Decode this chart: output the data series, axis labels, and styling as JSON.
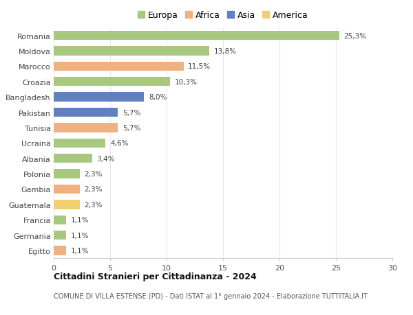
{
  "countries": [
    "Romania",
    "Moldova",
    "Marocco",
    "Croazia",
    "Bangladesh",
    "Pakistan",
    "Tunisia",
    "Ucraina",
    "Albania",
    "Polonia",
    "Gambia",
    "Guatemala",
    "Francia",
    "Germania",
    "Egitto"
  ],
  "values": [
    25.3,
    13.8,
    11.5,
    10.3,
    8.0,
    5.7,
    5.7,
    4.6,
    3.4,
    2.3,
    2.3,
    2.3,
    1.1,
    1.1,
    1.1
  ],
  "labels": [
    "25,3%",
    "13,8%",
    "11,5%",
    "10,3%",
    "8,0%",
    "5,7%",
    "5,7%",
    "4,6%",
    "3,4%",
    "2,3%",
    "2,3%",
    "2,3%",
    "1,1%",
    "1,1%",
    "1,1%"
  ],
  "continents": [
    "Europa",
    "Europa",
    "Africa",
    "Europa",
    "Asia",
    "Asia",
    "Africa",
    "Europa",
    "Europa",
    "Europa",
    "Africa",
    "America",
    "Europa",
    "Europa",
    "Africa"
  ],
  "colors": {
    "Europa": "#a8c880",
    "Africa": "#f0b080",
    "Asia": "#6080c0",
    "America": "#f0d070"
  },
  "xlim": [
    0,
    30
  ],
  "xticks": [
    0,
    5,
    10,
    15,
    20,
    25,
    30
  ],
  "title": "Cittadini Stranieri per Cittadinanza - 2024",
  "subtitle": "COMUNE DI VILLA ESTENSE (PD) - Dati ISTAT al 1° gennaio 2024 - Elaborazione TUTTITALIA.IT",
  "background_color": "#ffffff",
  "grid_color": "#e8e8e8",
  "legend_order": [
    "Europa",
    "Africa",
    "Asia",
    "America"
  ]
}
